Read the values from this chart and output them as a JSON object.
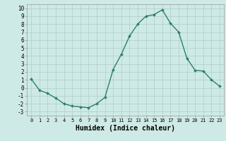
{
  "x": [
    0,
    1,
    2,
    3,
    4,
    5,
    6,
    7,
    8,
    9,
    10,
    11,
    12,
    13,
    14,
    15,
    16,
    17,
    18,
    19,
    20,
    21,
    22,
    23
  ],
  "y": [
    1.1,
    -0.3,
    -0.7,
    -1.3,
    -2.0,
    -2.3,
    -2.4,
    -2.5,
    -2.0,
    -1.2,
    2.3,
    4.2,
    6.5,
    8.0,
    9.0,
    9.2,
    9.8,
    8.1,
    7.0,
    3.7,
    2.2,
    2.1,
    1.0,
    0.2
  ],
  "line_color": "#2d7d6e",
  "marker": "D",
  "marker_size": 2.0,
  "line_width": 1.0,
  "bg_color": "#ceeae6",
  "grid_color": "#b0ccc8",
  "xlabel": "Humidex (Indice chaleur)",
  "xlabel_fontsize": 7,
  "xtick_labels": [
    "0",
    "1",
    "2",
    "3",
    "4",
    "5",
    "6",
    "7",
    "8",
    "9",
    "10",
    "11",
    "12",
    "13",
    "14",
    "15",
    "16",
    "17",
    "18",
    "19",
    "20",
    "21",
    "22",
    "23"
  ],
  "ytick_min": -3,
  "ytick_max": 10,
  "ytick_step": 1,
  "xlim": [
    -0.5,
    23.5
  ],
  "ylim": [
    -3.5,
    10.5
  ]
}
